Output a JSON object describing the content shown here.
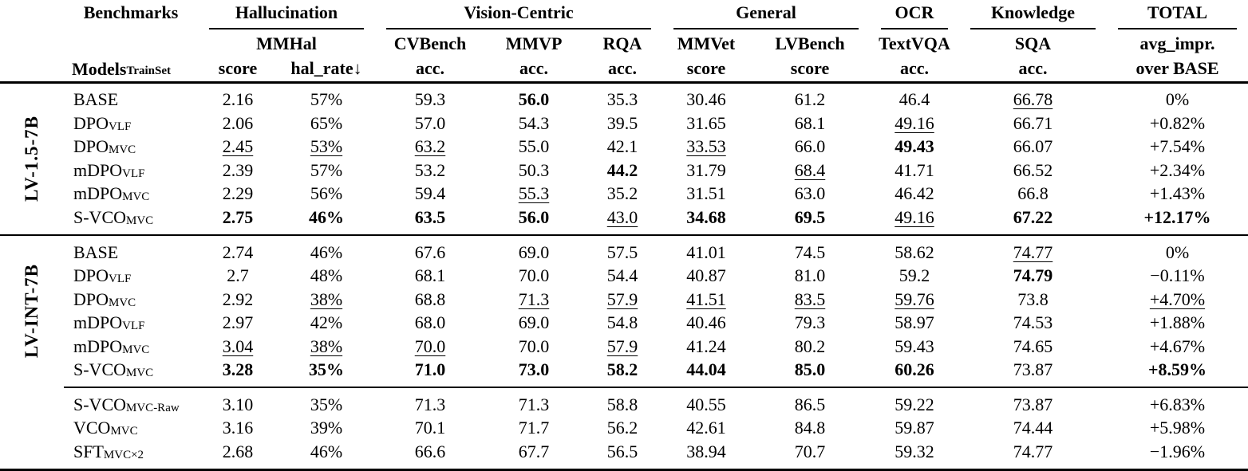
{
  "table": {
    "corner_label": "Benchmarks",
    "models": {
      "base": "Models",
      "sub": "TrainSet"
    },
    "col_groups": {
      "hallucination": "Hallucination",
      "vision": "Vision-Centric",
      "general": "General",
      "ocr": "OCR",
      "knowledge": "Knowledge",
      "total": "TOTAL"
    },
    "benchmarks": {
      "mmhal": {
        "name": "MMHal",
        "metric1": "score",
        "metric2": "hal_rate↓"
      },
      "cvbench": {
        "name": "CVBench",
        "metric": "acc."
      },
      "mmvp": {
        "name": "MMVP",
        "metric": "acc."
      },
      "rqa": {
        "name": "RQA",
        "metric": "acc."
      },
      "mmvet": {
        "name": "MMVet",
        "metric": "score"
      },
      "lvbench": {
        "name": "LVBench",
        "metric": "score"
      },
      "textvqa": {
        "name": "TextVQA",
        "metric": "acc."
      },
      "sqa": {
        "name": "SQA",
        "metric": "acc."
      },
      "total": {
        "name": "avg_impr.",
        "metric": "over BASE"
      }
    },
    "groups": [
      {
        "label": "LV-1.5-7B",
        "rows": [
          {
            "model": [
              "BASE",
              ""
            ],
            "cells": [
              [
                "2.16",
                ""
              ],
              [
                "57%",
                ""
              ],
              [
                "59.3",
                ""
              ],
              [
                "56.0",
                "b"
              ],
              [
                "35.3",
                ""
              ],
              [
                "30.46",
                ""
              ],
              [
                "61.2",
                ""
              ],
              [
                "46.4",
                ""
              ],
              [
                "66.78",
                "u"
              ],
              [
                "0%",
                ""
              ]
            ]
          },
          {
            "model": [
              "DPO",
              "VLF"
            ],
            "cells": [
              [
                "2.06",
                ""
              ],
              [
                "65%",
                ""
              ],
              [
                "57.0",
                ""
              ],
              [
                "54.3",
                ""
              ],
              [
                "39.5",
                ""
              ],
              [
                "31.65",
                ""
              ],
              [
                "68.1",
                ""
              ],
              [
                "49.16",
                "u"
              ],
              [
                "66.71",
                ""
              ],
              [
                "+0.82%",
                ""
              ]
            ]
          },
          {
            "model": [
              "DPO",
              "MVC"
            ],
            "cells": [
              [
                "2.45",
                "u"
              ],
              [
                "53%",
                "u"
              ],
              [
                "63.2",
                "u"
              ],
              [
                "55.0",
                ""
              ],
              [
                "42.1",
                ""
              ],
              [
                "33.53",
                "u"
              ],
              [
                "66.0",
                ""
              ],
              [
                "49.43",
                "b"
              ],
              [
                "66.07",
                ""
              ],
              [
                "+7.54%",
                ""
              ]
            ]
          },
          {
            "model": [
              "mDPO",
              "VLF"
            ],
            "cells": [
              [
                "2.39",
                ""
              ],
              [
                "57%",
                ""
              ],
              [
                "53.2",
                ""
              ],
              [
                "50.3",
                ""
              ],
              [
                "44.2",
                "b"
              ],
              [
                "31.79",
                ""
              ],
              [
                "68.4",
                "u"
              ],
              [
                "41.71",
                ""
              ],
              [
                "66.52",
                ""
              ],
              [
                "+2.34%",
                ""
              ]
            ]
          },
          {
            "model": [
              "mDPO",
              "MVC"
            ],
            "cells": [
              [
                "2.29",
                ""
              ],
              [
                "56%",
                ""
              ],
              [
                "59.4",
                ""
              ],
              [
                "55.3",
                "u"
              ],
              [
                "35.2",
                ""
              ],
              [
                "31.51",
                ""
              ],
              [
                "63.0",
                ""
              ],
              [
                "46.42",
                ""
              ],
              [
                "66.8",
                ""
              ],
              [
                "+1.43%",
                ""
              ]
            ]
          },
          {
            "model": [
              "S-VCO",
              "MVC"
            ],
            "cells": [
              [
                "2.75",
                "b"
              ],
              [
                "46%",
                "b"
              ],
              [
                "63.5",
                "b"
              ],
              [
                "56.0",
                "b"
              ],
              [
                "43.0",
                "u"
              ],
              [
                "34.68",
                "b"
              ],
              [
                "69.5",
                "b"
              ],
              [
                "49.16",
                "u"
              ],
              [
                "67.22",
                "b"
              ],
              [
                "+12.17%",
                "b"
              ]
            ]
          }
        ]
      },
      {
        "label": "LV-INT-7B",
        "rows": [
          {
            "model": [
              "BASE",
              ""
            ],
            "cells": [
              [
                "2.74",
                ""
              ],
              [
                "46%",
                ""
              ],
              [
                "67.6",
                ""
              ],
              [
                "69.0",
                ""
              ],
              [
                "57.5",
                ""
              ],
              [
                "41.01",
                ""
              ],
              [
                "74.5",
                ""
              ],
              [
                "58.62",
                ""
              ],
              [
                "74.77",
                "u"
              ],
              [
                "0%",
                ""
              ]
            ]
          },
          {
            "model": [
              "DPO",
              "VLF"
            ],
            "cells": [
              [
                "2.7",
                ""
              ],
              [
                "48%",
                ""
              ],
              [
                "68.1",
                ""
              ],
              [
                "70.0",
                ""
              ],
              [
                "54.4",
                ""
              ],
              [
                "40.87",
                ""
              ],
              [
                "81.0",
                ""
              ],
              [
                "59.2",
                ""
              ],
              [
                "74.79",
                "b"
              ],
              [
                "−0.11%",
                ""
              ]
            ]
          },
          {
            "model": [
              "DPO",
              "MVC"
            ],
            "cells": [
              [
                "2.92",
                ""
              ],
              [
                "38%",
                "u"
              ],
              [
                "68.8",
                ""
              ],
              [
                "71.3",
                "u"
              ],
              [
                "57.9",
                "u"
              ],
              [
                "41.51",
                "u"
              ],
              [
                "83.5",
                "u"
              ],
              [
                "59.76",
                "u"
              ],
              [
                "73.8",
                ""
              ],
              [
                "+4.70%",
                "u"
              ]
            ]
          },
          {
            "model": [
              "mDPO",
              "VLF"
            ],
            "cells": [
              [
                "2.97",
                ""
              ],
              [
                "42%",
                ""
              ],
              [
                "68.0",
                ""
              ],
              [
                "69.0",
                ""
              ],
              [
                "54.8",
                ""
              ],
              [
                "40.46",
                ""
              ],
              [
                "79.3",
                ""
              ],
              [
                "58.97",
                ""
              ],
              [
                "74.53",
                ""
              ],
              [
                "+1.88%",
                ""
              ]
            ]
          },
          {
            "model": [
              "mDPO",
              "MVC"
            ],
            "cells": [
              [
                "3.04",
                "u"
              ],
              [
                "38%",
                "u"
              ],
              [
                "70.0",
                "u"
              ],
              [
                "70.0",
                ""
              ],
              [
                "57.9",
                "u"
              ],
              [
                "41.24",
                ""
              ],
              [
                "80.2",
                ""
              ],
              [
                "59.43",
                ""
              ],
              [
                "74.65",
                ""
              ],
              [
                "+4.67%",
                ""
              ]
            ]
          },
          {
            "model": [
              "S-VCO",
              "MVC"
            ],
            "cells": [
              [
                "3.28",
                "b"
              ],
              [
                "35%",
                "b"
              ],
              [
                "71.0",
                "b"
              ],
              [
                "73.0",
                "b"
              ],
              [
                "58.2",
                "b"
              ],
              [
                "44.04",
                "b"
              ],
              [
                "85.0",
                "b"
              ],
              [
                "60.26",
                "b"
              ],
              [
                "73.87",
                ""
              ],
              [
                "+8.59%",
                "b"
              ]
            ]
          }
        ],
        "subrows": [
          {
            "model": [
              "S-VCO",
              "MVC-Raw"
            ],
            "cells": [
              [
                "3.10",
                ""
              ],
              [
                "35%",
                ""
              ],
              [
                "71.3",
                ""
              ],
              [
                "71.3",
                ""
              ],
              [
                "58.8",
                ""
              ],
              [
                "40.55",
                ""
              ],
              [
                "86.5",
                ""
              ],
              [
                "59.22",
                ""
              ],
              [
                "73.87",
                ""
              ],
              [
                "+6.83%",
                ""
              ]
            ]
          },
          {
            "model": [
              "VCO",
              "MVC"
            ],
            "cells": [
              [
                "3.16",
                ""
              ],
              [
                "39%",
                ""
              ],
              [
                "70.1",
                ""
              ],
              [
                "71.7",
                ""
              ],
              [
                "56.2",
                ""
              ],
              [
                "42.61",
                ""
              ],
              [
                "84.8",
                ""
              ],
              [
                "59.87",
                ""
              ],
              [
                "74.44",
                ""
              ],
              [
                "+5.98%",
                ""
              ]
            ]
          },
          {
            "model": [
              "SFT",
              "MVC×2"
            ],
            "cells": [
              [
                "2.68",
                ""
              ],
              [
                "46%",
                ""
              ],
              [
                "66.6",
                ""
              ],
              [
                "67.7",
                ""
              ],
              [
                "56.5",
                ""
              ],
              [
                "38.94",
                ""
              ],
              [
                "70.7",
                ""
              ],
              [
                "59.32",
                ""
              ],
              [
                "74.77",
                ""
              ],
              [
                "−1.96%",
                ""
              ]
            ]
          }
        ]
      }
    ]
  }
}
